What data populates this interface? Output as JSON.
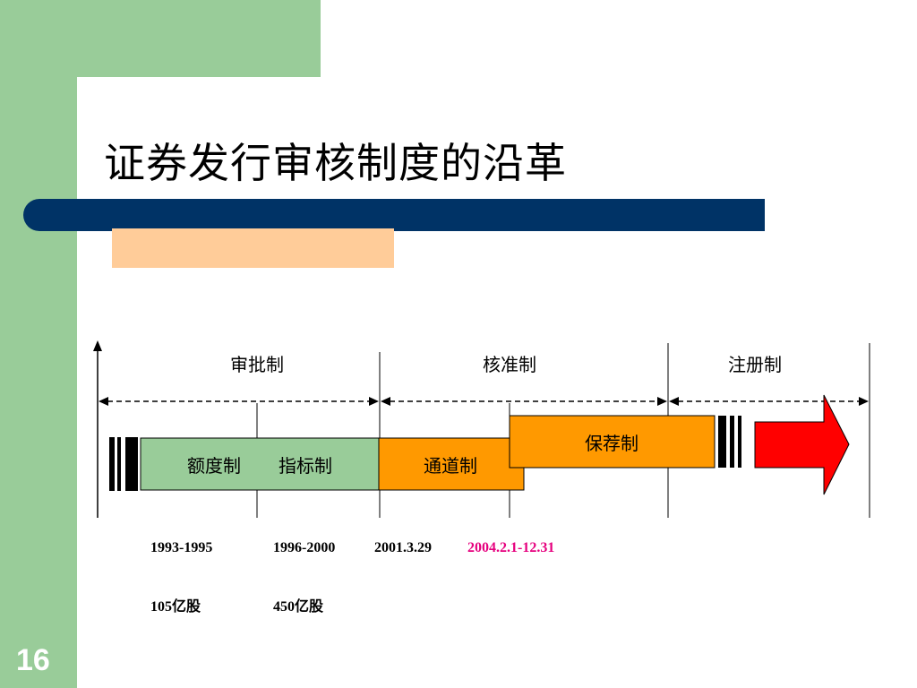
{
  "slide": {
    "title": "证券发行审核制度的沿革",
    "page_number": "16"
  },
  "chart_data": {
    "type": "timeline",
    "phases": [
      "审批制",
      "核准制",
      "注册制"
    ],
    "stages": [
      "额度制",
      "指标制",
      "通道制",
      "保荐制"
    ],
    "dates": [
      "1993-1995",
      "1996-2000",
      "2001.3.29",
      "2004.2.1-12.31"
    ],
    "quotas": [
      "105亿股",
      "450亿股"
    ],
    "colors": {
      "stage_green": "#99cc99",
      "stage_orange": "#ff9900",
      "arrow_red": "#ff0000",
      "date_highlight": "#e6007e"
    }
  }
}
